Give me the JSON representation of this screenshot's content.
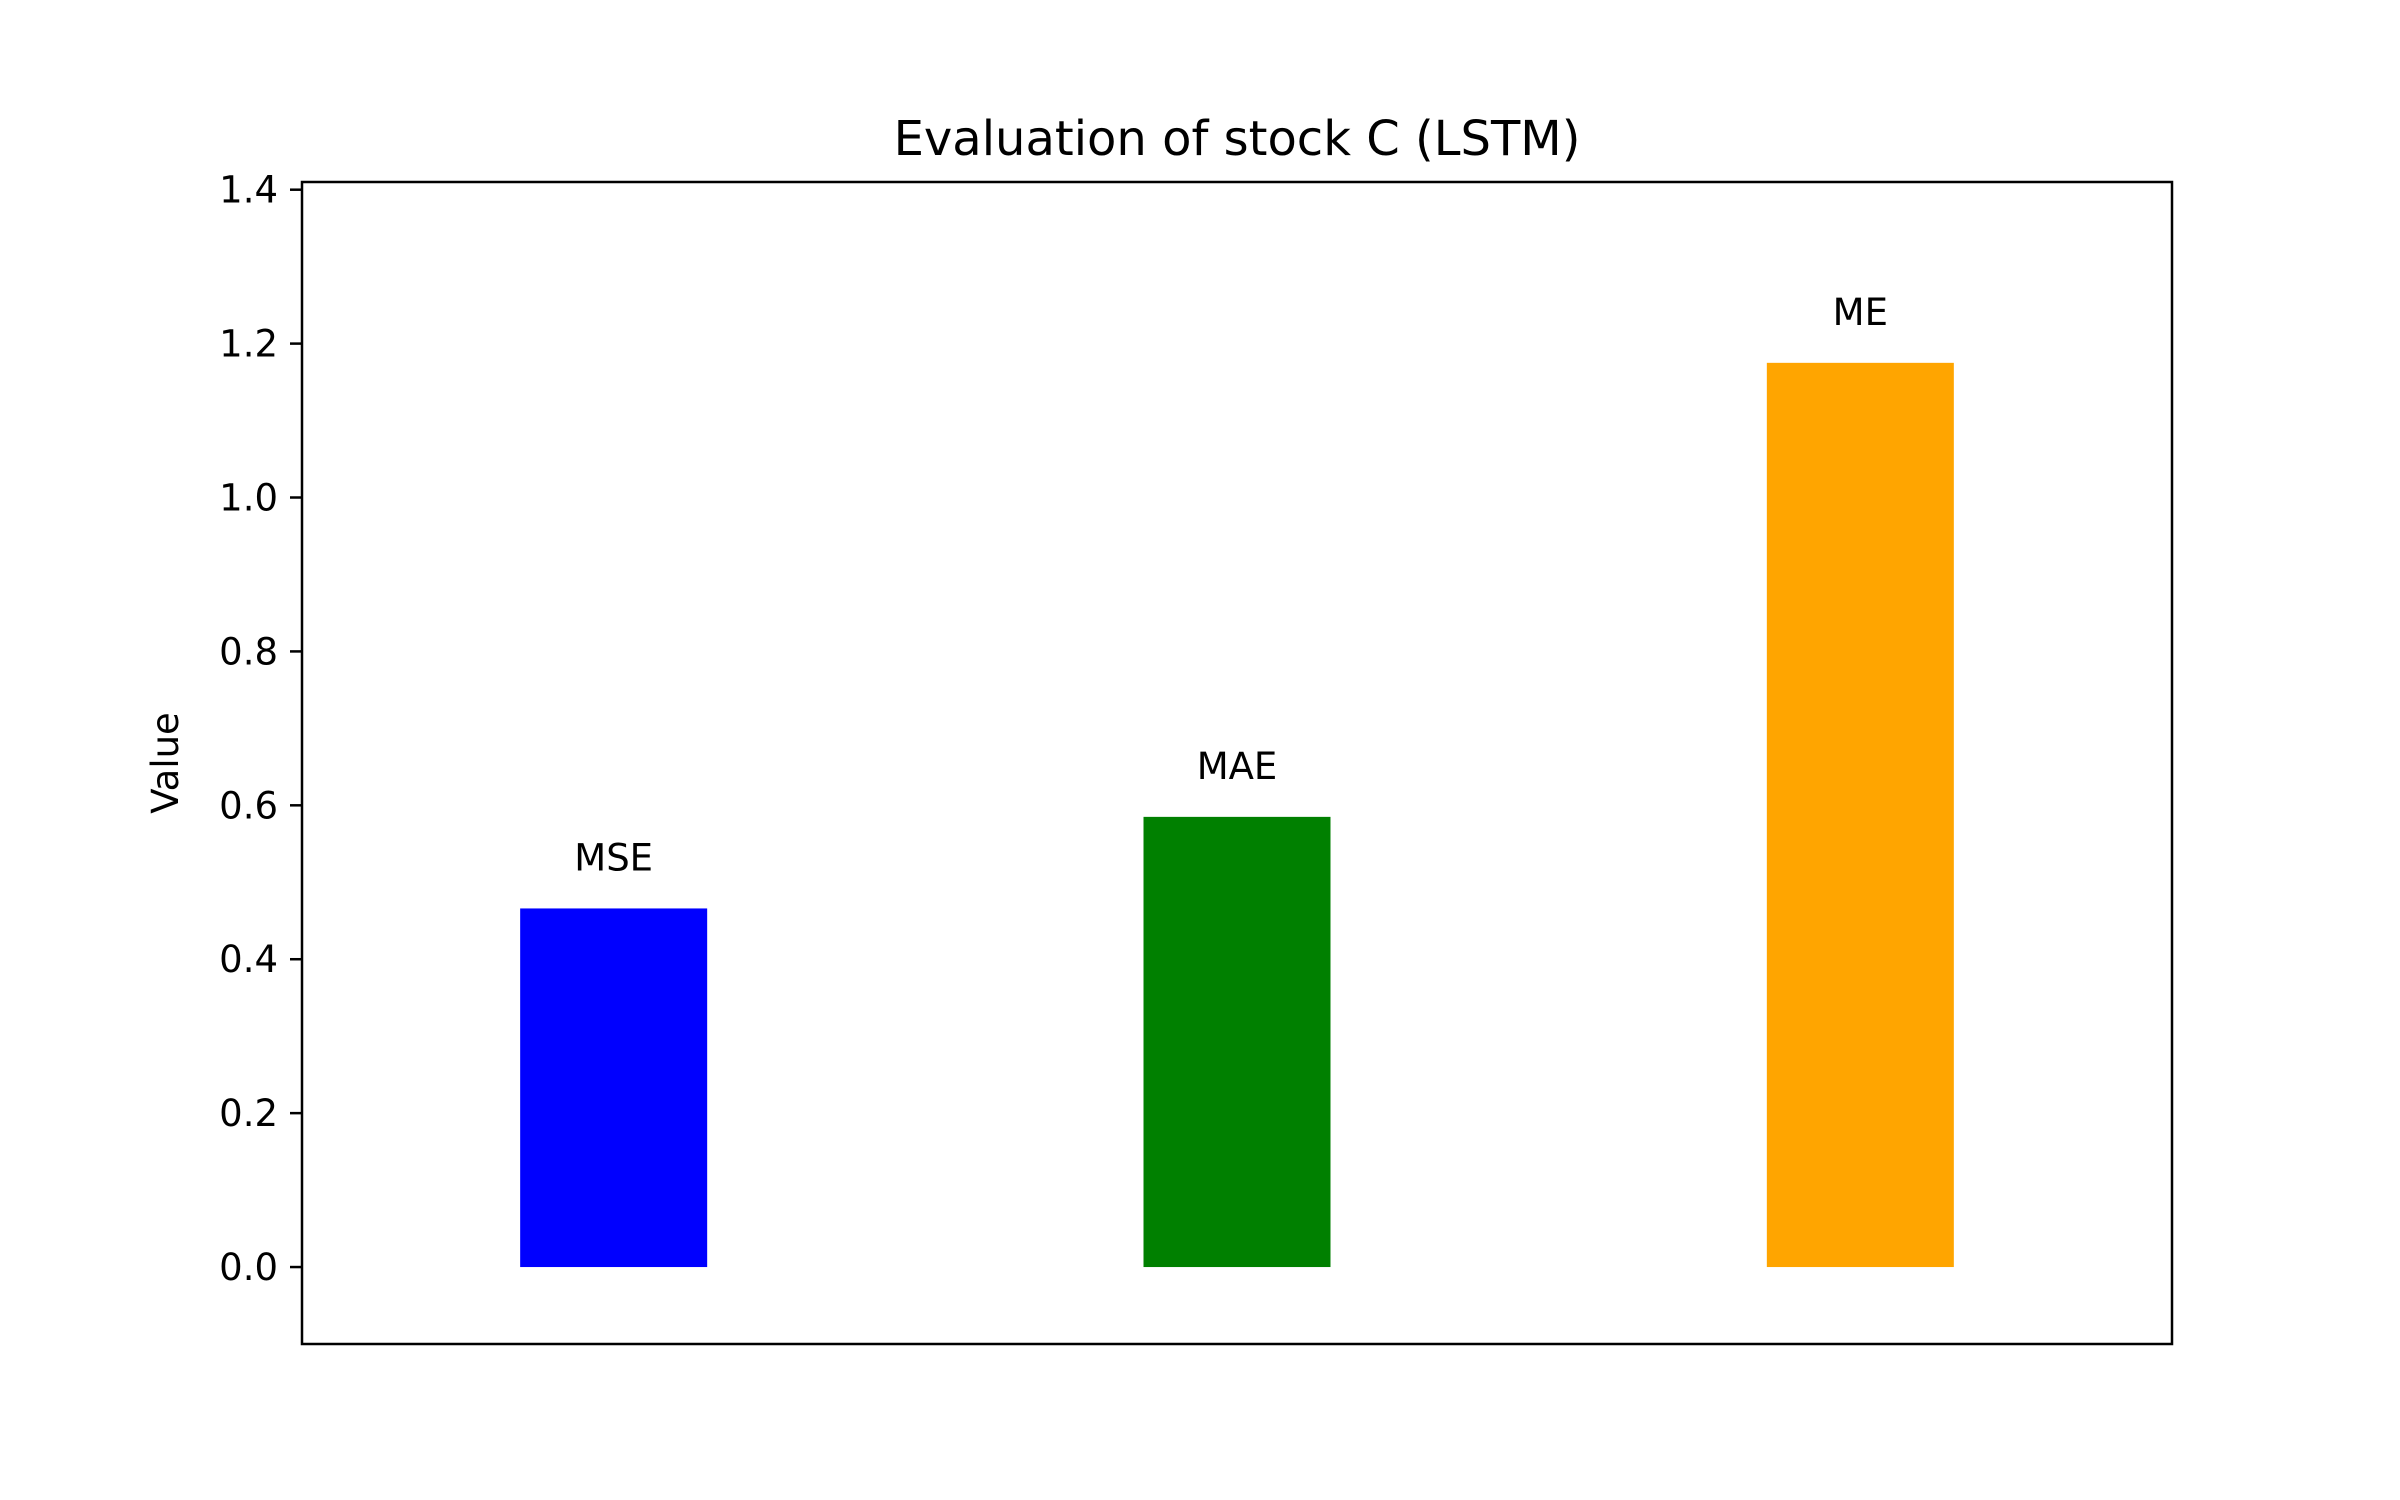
{
  "chart_data": {
    "type": "bar",
    "title": "Evaluation of stock C (LSTM)",
    "xlabel": "",
    "ylabel": "Value",
    "categories": [
      "MSE",
      "MAE",
      "ME"
    ],
    "values": [
      0.466,
      0.585,
      1.175
    ],
    "colors": [
      "#0000ff",
      "#008000",
      "#ffa500"
    ],
    "ylim": [
      -0.1,
      1.41
    ],
    "yticks": [
      0.0,
      0.2,
      0.4,
      0.6,
      0.8,
      1.0,
      1.2,
      1.4
    ],
    "ytick_labels": [
      "0.0",
      "0.2",
      "0.4",
      "0.6",
      "0.8",
      "1.0",
      "1.2",
      "1.4"
    ],
    "bar_labels": [
      "MSE",
      "MAE",
      "ME"
    ],
    "grid": false,
    "legend": "none"
  }
}
